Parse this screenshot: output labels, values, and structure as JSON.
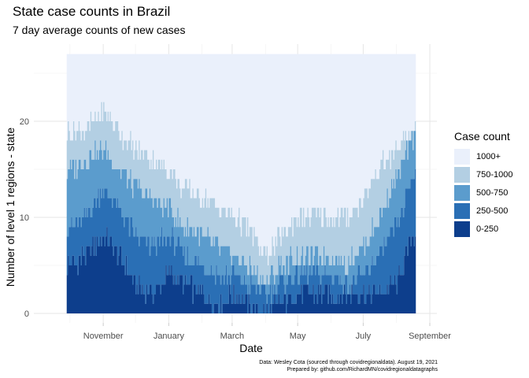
{
  "title": "State case counts in Brazil",
  "subtitle": "7 day average counts of new cases",
  "caption": {
    "line1": "Data: Wesley Cota (sourced through covidregionaldata). August 19, 2021",
    "line2": "Prepared by: github.com/RichardMN/covidregionaldatagraphs"
  },
  "legend": {
    "title": "Case count",
    "items": [
      {
        "label": "1000+",
        "color": "#eaf0fb"
      },
      {
        "label": "750-1000",
        "color": "#b3cfe3"
      },
      {
        "label": "500-750",
        "color": "#5b9ccd"
      },
      {
        "label": "250-500",
        "color": "#2a6fb5"
      },
      {
        "label": "0-250",
        "color": "#0d3e8c"
      }
    ]
  },
  "chart_data": {
    "type": "area",
    "title": "State case counts in Brazil",
    "subtitle": "7 day average counts of new cases",
    "xlabel": "Date",
    "ylabel": "Number of level 1 regions - state",
    "x_ticks": [
      "November",
      "January",
      "March",
      "May",
      "July",
      "September"
    ],
    "y_ticks": [
      0,
      10,
      20
    ],
    "ylim": [
      0,
      27
    ],
    "total_regions": 27,
    "stacking": "cumulative: each series value is the number of states with 7-day average below the band's upper bound; 1000+ fills up to the total",
    "x": [
      "2020-10-01",
      "2020-10-15",
      "2020-11-01",
      "2020-11-15",
      "2020-12-01",
      "2020-12-15",
      "2021-01-01",
      "2021-01-15",
      "2021-02-01",
      "2021-02-15",
      "2021-03-01",
      "2021-03-15",
      "2021-04-01",
      "2021-04-15",
      "2021-05-01",
      "2021-05-15",
      "2021-06-01",
      "2021-06-15",
      "2021-07-01",
      "2021-07-15",
      "2021-08-01",
      "2021-08-15"
    ],
    "series": [
      {
        "name": "0-250",
        "values": [
          5,
          6,
          8,
          6,
          3,
          2,
          4,
          3,
          2,
          1,
          2,
          1,
          0,
          1,
          2,
          2,
          2,
          2,
          2,
          2,
          3,
          8
        ]
      },
      {
        "name": "250-500",
        "values": [
          9,
          10,
          13,
          11,
          8,
          7,
          8,
          6,
          5,
          4,
          4,
          3,
          2,
          3,
          4,
          4,
          4,
          3,
          4,
          6,
          9,
          14
        ]
      },
      {
        "name": "500-750",
        "values": [
          15,
          16,
          17,
          15,
          13,
          12,
          11,
          9,
          8,
          7,
          6,
          5,
          3,
          5,
          6,
          6,
          6,
          5,
          7,
          10,
          14,
          18
        ]
      },
      {
        "name": "750-1000",
        "values": [
          19,
          19,
          21,
          19,
          17,
          16,
          15,
          13,
          12,
          11,
          10,
          9,
          6,
          8,
          10,
          10,
          10,
          10,
          12,
          15,
          17,
          19
        ]
      }
    ]
  }
}
